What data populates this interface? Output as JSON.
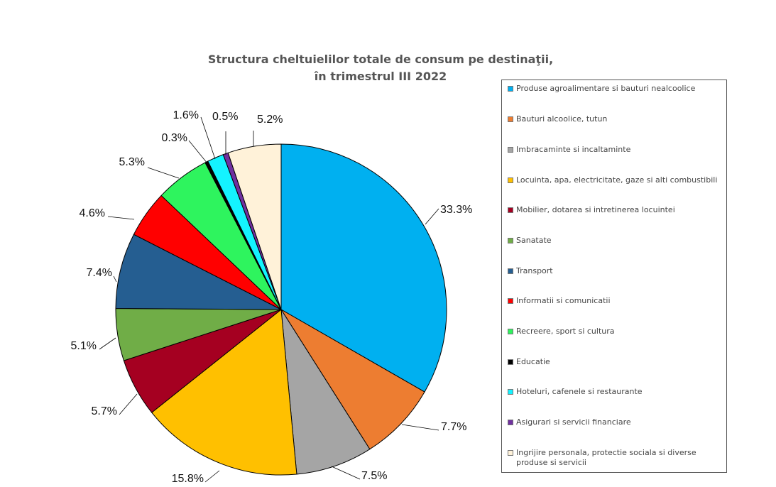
{
  "chart_data": {
    "type": "pie",
    "title": "Structura cheltuielilor totale de consum pe destinaţii,",
    "subtitle": "în trimestrul III 2022",
    "legend_position": "right",
    "slices": [
      {
        "name": "Produse agroalimentare si bauturi nealcoolice",
        "value": 33.3,
        "label": "33.3%",
        "color": "#00B0F0"
      },
      {
        "name": "Bauturi alcoolice, tutun",
        "value": 7.7,
        "label": "7.7%",
        "color": "#ED7D31"
      },
      {
        "name": "Imbracaminte si incaltaminte",
        "value": 7.5,
        "label": "7.5%",
        "color": "#A5A5A5"
      },
      {
        "name": "Locuinta, apa, electricitate, gaze si alti combustibili",
        "value": 15.8,
        "label": "15.8%",
        "color": "#FFC000"
      },
      {
        "name": "Mobilier, dotarea si intretinerea locuintei",
        "value": 5.7,
        "label": "5.7%",
        "color": "#A50021"
      },
      {
        "name": "Sanatate",
        "value": 5.1,
        "label": "5.1%",
        "color": "#70AD47"
      },
      {
        "name": "Transport",
        "value": 7.4,
        "label": "7.4%",
        "color": "#255E91"
      },
      {
        "name": "Informatii si comunicatii",
        "value": 4.6,
        "label": "4.6%",
        "color": "#FF0000"
      },
      {
        "name": "Recreere, sport si cultura",
        "value": 5.3,
        "label": "5.3%",
        "color": "#2EF45E"
      },
      {
        "name": "Educatie",
        "value": 0.3,
        "label": "0.3%",
        "color": "#000000"
      },
      {
        "name": "Hoteluri, cafenele si restaurante",
        "value": 1.6,
        "label": "1.6%",
        "color": "#14F3FF"
      },
      {
        "name": "Asigurari si servicii financiare",
        "value": 0.5,
        "label": "0.5%",
        "color": "#7030A0"
      },
      {
        "name": "Ingrijire personala, protectie sociala si diverse produse si servicii",
        "value": 5.2,
        "label": "5.2%",
        "color": "#FFF2D9"
      }
    ]
  }
}
